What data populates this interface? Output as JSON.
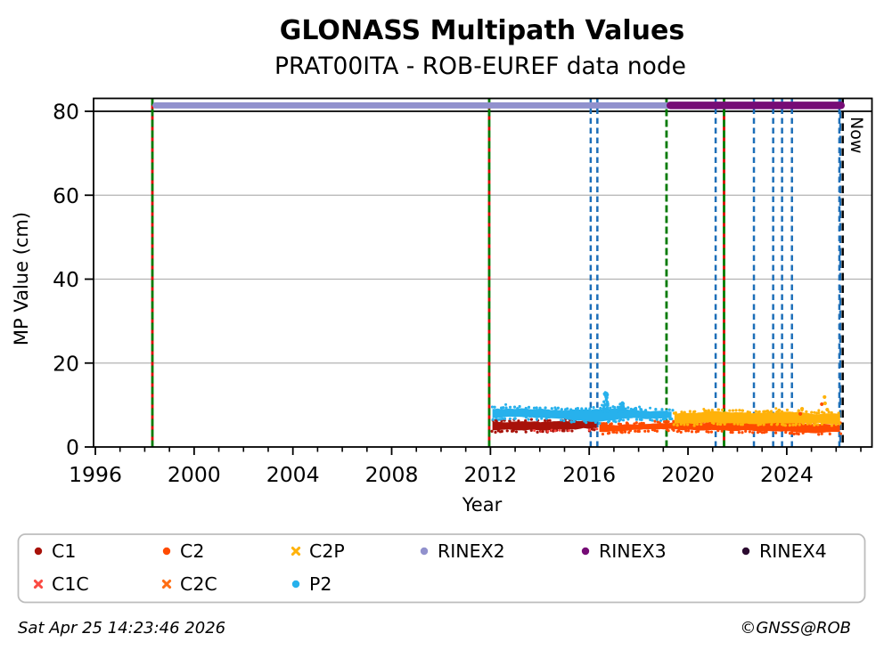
{
  "chart_data": {
    "type": "scatter",
    "title": "GLONASS Multipath Values",
    "subtitle": "PRAT00ITA - ROB-EUREF data node",
    "xlabel": "Year",
    "ylabel": "MP Value (cm)",
    "xlim": [
      1995.93,
      2027.48
    ],
    "ylim": [
      0,
      82.7
    ],
    "xticks": [
      1996,
      2000,
      2004,
      2008,
      2012,
      2016,
      2020,
      2024
    ],
    "yticks": [
      0,
      20,
      40,
      60,
      80
    ],
    "grid_y": [
      20,
      40,
      60
    ],
    "threshold_y": 80,
    "series": [
      {
        "name": "C1",
        "color": "#a81209",
        "x0": 2012.08,
        "x1": 2016.41,
        "mean": 5.2,
        "amp": 1.3,
        "fringe_color": "#fb4a42"
      },
      {
        "name": "C2",
        "color": "#ff4b00",
        "x0": 2016.41,
        "x1": 2026.2,
        "mean": 4.75,
        "amp": 1.15
      },
      {
        "name": "C2P",
        "color": "#ffb20a",
        "x0": 2019.45,
        "x1": 2026.2,
        "mean": 6.85,
        "amp": 1.35
      },
      {
        "name": "P2",
        "color": "#27b1ec",
        "x0": 2012.08,
        "x1": 2019.42,
        "mean": 7.8,
        "amp": 1.4,
        "spikes": [
          {
            "x": 2016.68,
            "peak": 12.9,
            "w": 0.13
          },
          {
            "x": 2017.32,
            "peak": 10.6,
            "w": 0.14
          },
          {
            "x": 2017.85,
            "peak": 9.3,
            "w": 0.09
          }
        ]
      }
    ],
    "outliers": [
      {
        "x": 2023.22,
        "y": 8.5,
        "color": "#ffb20a"
      },
      {
        "x": 2023.69,
        "y": 8.7,
        "color": "#ffb20a"
      },
      {
        "x": 2024.62,
        "y": 9.1,
        "color": "#ffb20a"
      },
      {
        "x": 2024.55,
        "y": 7.9,
        "color": "#ff4b00"
      },
      {
        "x": 2025.42,
        "y": 10.2,
        "color": "#ff4b00"
      },
      {
        "x": 2025.53,
        "y": 11.9,
        "color": "#ffb20a"
      },
      {
        "x": 2025.55,
        "y": 10.4,
        "color": "#ffb20a"
      },
      {
        "x": 2025.64,
        "y": 8.9,
        "color": "#ffb20a"
      }
    ],
    "bars": [
      {
        "name": "RINEX2",
        "color": "#9191cd",
        "x0": 1998.31,
        "x1": 2026.33,
        "y": 81.4,
        "h": 7
      },
      {
        "name": "RINEX3",
        "color": "#760c76",
        "x0": 2019.13,
        "x1": 2026.35,
        "y": 81.4,
        "h": 8.5
      }
    ],
    "events": {
      "receiver_change_green": [
        1998.31,
        2011.95,
        2019.13,
        2021.46
      ],
      "antenna_change_red": [
        1998.31,
        2011.95,
        2021.46
      ],
      "firmware_blue": [
        2016.06,
        2016.33,
        2021.12,
        2022.67,
        2023.45,
        2023.81,
        2024.21,
        2026.13
      ],
      "now_year": 2026.23
    },
    "now_label": "Now"
  },
  "legend": {
    "rows": [
      [
        {
          "label": "C1",
          "color": "#a81209",
          "marker": "circle"
        },
        {
          "label": "C2",
          "color": "#ff4b00",
          "marker": "circle"
        },
        {
          "label": "C2P",
          "color": "#ffb20a",
          "marker": "x"
        },
        {
          "label": "RINEX2",
          "color": "#9191cd",
          "marker": "circle"
        },
        {
          "label": "RINEX3",
          "color": "#760c76",
          "marker": "circle"
        },
        {
          "label": "RINEX4",
          "color": "#2c0b30",
          "marker": "circle"
        }
      ],
      [
        {
          "label": "C1C",
          "color": "#fb4a42",
          "marker": "x"
        },
        {
          "label": "C2C",
          "color": "#ff6e13",
          "marker": "x"
        },
        {
          "label": "P2",
          "color": "#27b1ec",
          "marker": "circle"
        }
      ]
    ]
  },
  "footer": {
    "left": "Sat Apr 25 14:23:46 2026",
    "right": "©GNSS@ROB"
  }
}
